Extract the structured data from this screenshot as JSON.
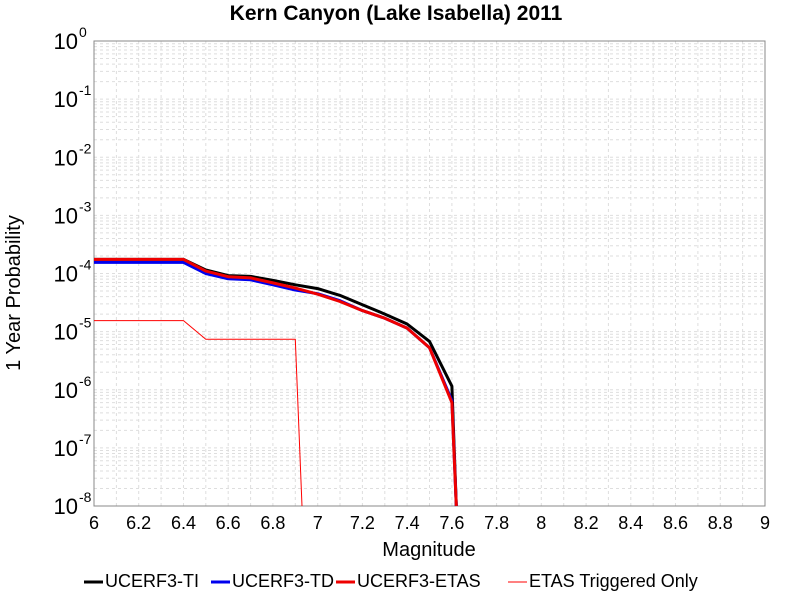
{
  "chart_data": {
    "type": "line",
    "title": "Kern Canyon (Lake Isabella) 2011",
    "xlabel": "Magnitude",
    "ylabel": "1 Year Probability",
    "xlim": [
      6,
      9
    ],
    "ylim": [
      1e-08,
      1
    ],
    "yscale": "log",
    "grid": true,
    "legend_position": "bottom",
    "x_ticks": [
      "6",
      "6.2",
      "6.4",
      "6.6",
      "6.8",
      "7",
      "7.2",
      "7.4",
      "7.6",
      "7.8",
      "8",
      "8.2",
      "8.4",
      "8.6",
      "8.8",
      "9"
    ],
    "y_ticks": [
      {
        "base": "10",
        "exp": "0",
        "value": 1
      },
      {
        "base": "10",
        "exp": "-1",
        "value": 0.1
      },
      {
        "base": "10",
        "exp": "-2",
        "value": 0.01
      },
      {
        "base": "10",
        "exp": "-3",
        "value": 0.001
      },
      {
        "base": "10",
        "exp": "-4",
        "value": 0.0001
      },
      {
        "base": "10",
        "exp": "-5",
        "value": 1e-05
      },
      {
        "base": "10",
        "exp": "-6",
        "value": 1e-06
      },
      {
        "base": "10",
        "exp": "-7",
        "value": 1e-07
      },
      {
        "base": "10",
        "exp": "-8",
        "value": 1e-08
      }
    ],
    "series": [
      {
        "name": "UCERF3-TI",
        "color": "#000000",
        "width": 3,
        "x": [
          6.0,
          6.4,
          6.5,
          6.6,
          6.7,
          6.8,
          6.9,
          7.0,
          7.1,
          7.2,
          7.3,
          7.4,
          7.5,
          7.6,
          7.62
        ],
        "y": [
          0.000175,
          0.000175,
          0.000115,
          9.2e-05,
          8.9e-05,
          7.6e-05,
          6.4e-05,
          5.5e-05,
          4.2e-05,
          2.9e-05,
          2e-05,
          1.35e-05,
          6.8e-06,
          1.15e-06,
          1e-08
        ]
      },
      {
        "name": "UCERF3-TD",
        "color": "#0000ee",
        "width": 3,
        "x": [
          6.0,
          6.4,
          6.5,
          6.6,
          6.7,
          6.8,
          6.9,
          7.0,
          7.1,
          7.2,
          7.3,
          7.4,
          7.5,
          7.6,
          7.62
        ],
        "y": [
          0.000155,
          0.000155,
          0.0001,
          8.1e-05,
          7.8e-05,
          6.4e-05,
          5.2e-05,
          4.5e-05,
          3.4e-05,
          2.3e-05,
          1.7e-05,
          1.15e-05,
          5.3e-06,
          6.5e-07,
          1e-08
        ]
      },
      {
        "name": "UCERF3-ETAS",
        "color": "#ee0000",
        "width": 3,
        "x": [
          6.0,
          6.4,
          6.5,
          6.6,
          6.7,
          6.8,
          6.9,
          7.0,
          7.1,
          7.2,
          7.3,
          7.4,
          7.5,
          7.6,
          7.62
        ],
        "y": [
          0.000175,
          0.000175,
          0.00011,
          8.8e-05,
          8.4e-05,
          6.9e-05,
          5.6e-05,
          4.4e-05,
          3.3e-05,
          2.3e-05,
          1.7e-05,
          1.15e-05,
          5.3e-06,
          6e-07,
          1e-08
        ]
      },
      {
        "name": "ETAS Triggered Only",
        "color": "#ff0000",
        "width": 1,
        "x": [
          6.0,
          6.4,
          6.5,
          6.9,
          6.93
        ],
        "y": [
          1.55e-05,
          1.55e-05,
          7.4e-06,
          7.4e-06,
          1e-08
        ]
      }
    ]
  }
}
